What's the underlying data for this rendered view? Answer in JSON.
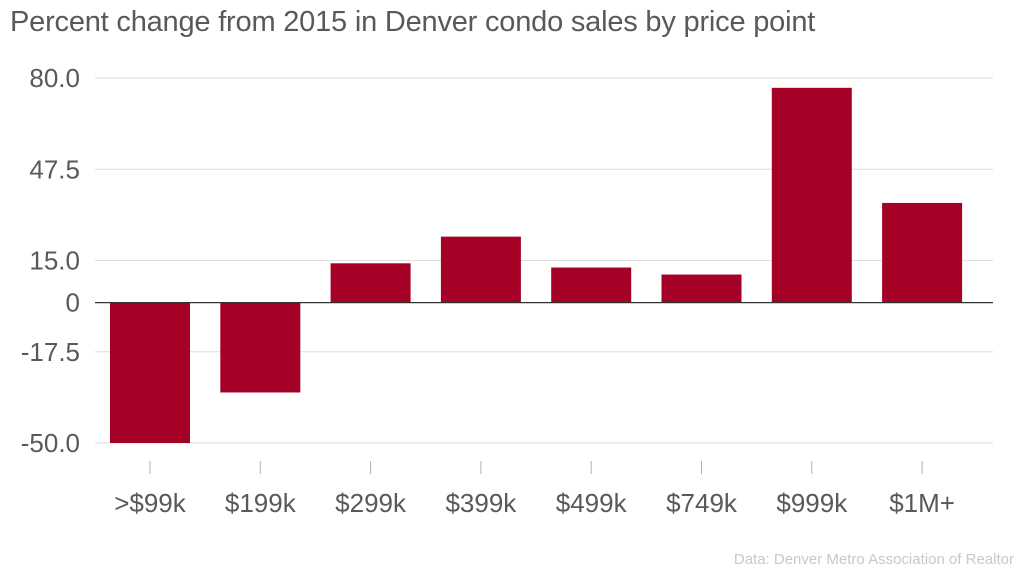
{
  "title": "Percent change from 2015 in Denver condo sales by price point",
  "source": "Data: Denver Metro Association of Realtor",
  "colors": {
    "bar": "#a50026",
    "grid": "#dedede",
    "zero_line": "#333333",
    "text": "#595959",
    "source_text": "#c8c8c8"
  },
  "chart_data": {
    "type": "bar",
    "title": "Percent change from 2015 in Denver condo sales by price point",
    "xlabel": "",
    "ylabel": "",
    "categories": [
      ">$99k",
      "$199k",
      "$299k",
      "$399k",
      "$499k",
      "$749k",
      "$999k",
      "$1M+"
    ],
    "values": [
      -50.0,
      -32.0,
      14.0,
      23.5,
      12.5,
      10.0,
      76.5,
      35.5
    ],
    "ylim": [
      -50.0,
      80.0
    ],
    "yticks": [
      80.0,
      47.5,
      15.0,
      0,
      -17.5,
      -50.0
    ],
    "ytick_labels": [
      "80.0",
      "47.5",
      "15.0",
      "0",
      "-17.5",
      "-50.0"
    ],
    "grid": true,
    "legend": "none"
  }
}
